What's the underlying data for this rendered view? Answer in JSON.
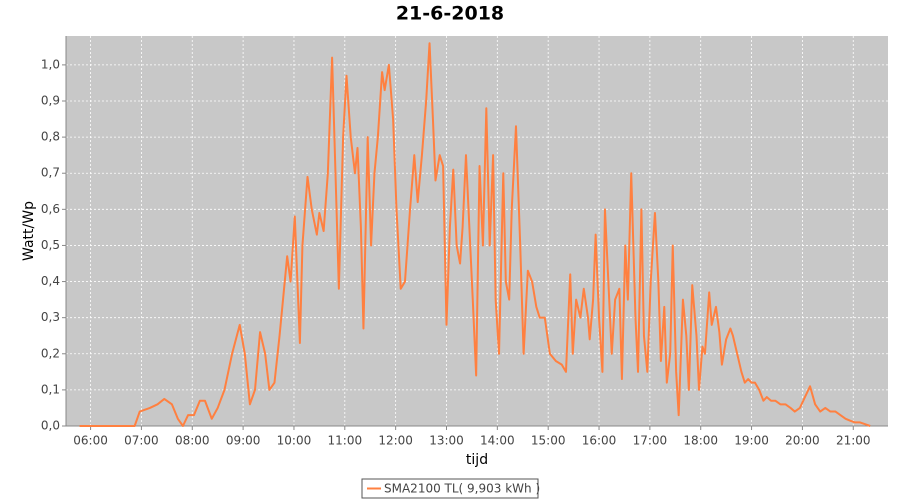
{
  "chart_data": {
    "type": "line",
    "title": "21-6-2018",
    "x_label": "tijd",
    "y_label": "Watt/Wp",
    "xlim": [
      "05:31",
      "21:41"
    ],
    "ylim": [
      0,
      1.08
    ],
    "xticks": [
      "06:00",
      "07:00",
      "08:00",
      "09:00",
      "10:00",
      "11:00",
      "12:00",
      "13:00",
      "14:00",
      "15:00",
      "16:00",
      "17:00",
      "18:00",
      "19:00",
      "20:00",
      "21:00"
    ],
    "yticks": [
      {
        "value": 0,
        "label": "0,0"
      },
      {
        "value": 0.1,
        "label": "0,1"
      },
      {
        "value": 0.2,
        "label": "0,2"
      },
      {
        "value": 0.3,
        "label": "0,3"
      },
      {
        "value": 0.4,
        "label": "0,4"
      },
      {
        "value": 0.5,
        "label": "0,5"
      },
      {
        "value": 0.6,
        "label": "0,6"
      },
      {
        "value": 0.7,
        "label": "0,7"
      },
      {
        "value": 0.8,
        "label": "0,8"
      },
      {
        "value": 0.9,
        "label": "0,9"
      },
      {
        "value": 1.0,
        "label": "1,0"
      }
    ],
    "grid": true,
    "legend": "bottom",
    "x": [
      "05:47",
      "06:52",
      "06:58",
      "07:10",
      "07:19",
      "07:27",
      "07:36",
      "07:43",
      "07:49",
      "07:55",
      "08:02",
      "08:09",
      "08:15",
      "08:23",
      "08:30",
      "08:38",
      "08:47",
      "08:56",
      "09:02",
      "09:08",
      "09:14",
      "09:20",
      "09:26",
      "09:31",
      "09:37",
      "09:43",
      "09:52",
      "09:56",
      "10:01",
      "10:07",
      "10:10",
      "10:16",
      "10:21",
      "10:27",
      "10:30",
      "10:35",
      "10:40",
      "10:45",
      "10:49",
      "10:53",
      "10:58",
      "11:02",
      "11:07",
      "11:12",
      "11:15",
      "11:19",
      "11:22",
      "11:27",
      "11:31",
      "11:35",
      "11:39",
      "11:44",
      "11:47",
      "11:52",
      "11:57",
      "12:01",
      "12:06",
      "12:11",
      "12:17",
      "12:22",
      "12:26",
      "12:31",
      "12:36",
      "12:40",
      "12:44",
      "12:47",
      "12:52",
      "12:56",
      "13:00",
      "13:04",
      "13:08",
      "13:12",
      "13:16",
      "13:19",
      "13:23",
      "13:28",
      "13:31",
      "13:35",
      "13:39",
      "13:43",
      "13:47",
      "13:51",
      "13:55",
      "13:58",
      "14:02",
      "14:07",
      "14:10",
      "14:14",
      "14:17",
      "14:22",
      "14:27",
      "14:31",
      "14:36",
      "14:41",
      "14:46",
      "14:50",
      "14:56",
      "15:02",
      "15:09",
      "15:16",
      "15:21",
      "15:26",
      "15:29",
      "15:33",
      "15:38",
      "15:42",
      "15:47",
      "15:49",
      "15:53",
      "15:56",
      "16:00",
      "16:04",
      "16:07",
      "16:11",
      "16:15",
      "16:19",
      "16:24",
      "16:27",
      "16:31",
      "16:34",
      "16:38",
      "16:43",
      "16:46",
      "16:50",
      "16:53",
      "16:57",
      "17:01",
      "17:06",
      "17:10",
      "17:13",
      "17:17",
      "17:20",
      "17:24",
      "17:27",
      "17:31",
      "17:34",
      "17:39",
      "17:43",
      "17:46",
      "17:50",
      "17:55",
      "17:58",
      "18:02",
      "18:05",
      "18:10",
      "18:13",
      "18:18",
      "18:22",
      "18:25",
      "18:30",
      "18:35",
      "18:38",
      "18:43",
      "18:48",
      "18:52",
      "18:56",
      "19:00",
      "19:04",
      "19:09",
      "19:14",
      "19:18",
      "19:23",
      "19:28",
      "19:34",
      "19:40",
      "19:46",
      "19:51",
      "19:57",
      "20:03",
      "20:09",
      "20:15",
      "20:21",
      "20:27",
      "20:33",
      "20:39",
      "20:45",
      "20:51",
      "20:56",
      "21:02",
      "21:08",
      "21:14",
      "21:20"
    ],
    "series": [
      {
        "name": "SMA2100 TL( 9,903 kWh )",
        "color": "#ff8040",
        "values": [
          0,
          0,
          0.04,
          0.05,
          0.06,
          0.075,
          0.06,
          0.02,
          0,
          0.03,
          0.03,
          0.07,
          0.07,
          0.02,
          0.05,
          0.1,
          0.2,
          0.28,
          0.2,
          0.06,
          0.1,
          0.26,
          0.2,
          0.1,
          0.12,
          0.25,
          0.47,
          0.4,
          0.58,
          0.23,
          0.5,
          0.69,
          0.6,
          0.53,
          0.59,
          0.54,
          0.7,
          1.02,
          0.7,
          0.38,
          0.8,
          0.97,
          0.8,
          0.7,
          0.77,
          0.55,
          0.27,
          0.8,
          0.5,
          0.7,
          0.8,
          0.98,
          0.93,
          1.0,
          0.85,
          0.6,
          0.38,
          0.4,
          0.6,
          0.75,
          0.62,
          0.75,
          0.9,
          1.06,
          0.85,
          0.68,
          0.75,
          0.72,
          0.28,
          0.55,
          0.71,
          0.5,
          0.45,
          0.55,
          0.75,
          0.5,
          0.35,
          0.14,
          0.72,
          0.5,
          0.88,
          0.5,
          0.75,
          0.35,
          0.2,
          0.7,
          0.4,
          0.35,
          0.6,
          0.83,
          0.5,
          0.2,
          0.43,
          0.4,
          0.33,
          0.3,
          0.3,
          0.2,
          0.18,
          0.17,
          0.15,
          0.42,
          0.2,
          0.35,
          0.3,
          0.38,
          0.3,
          0.24,
          0.35,
          0.53,
          0.3,
          0.15,
          0.6,
          0.4,
          0.2,
          0.35,
          0.38,
          0.13,
          0.5,
          0.35,
          0.7,
          0.3,
          0.15,
          0.6,
          0.25,
          0.15,
          0.4,
          0.59,
          0.4,
          0.18,
          0.33,
          0.12,
          0.2,
          0.5,
          0.15,
          0.03,
          0.35,
          0.25,
          0.1,
          0.39,
          0.25,
          0.1,
          0.22,
          0.2,
          0.37,
          0.28,
          0.33,
          0.26,
          0.17,
          0.24,
          0.27,
          0.25,
          0.2,
          0.15,
          0.12,
          0.13,
          0.12,
          0.12,
          0.1,
          0.07,
          0.08,
          0.07,
          0.07,
          0.06,
          0.06,
          0.05,
          0.04,
          0.05,
          0.08,
          0.11,
          0.06,
          0.04,
          0.05,
          0.04,
          0.04,
          0.03,
          0.02,
          0.015,
          0.01,
          0.01,
          0.005,
          0
        ]
      }
    ]
  }
}
